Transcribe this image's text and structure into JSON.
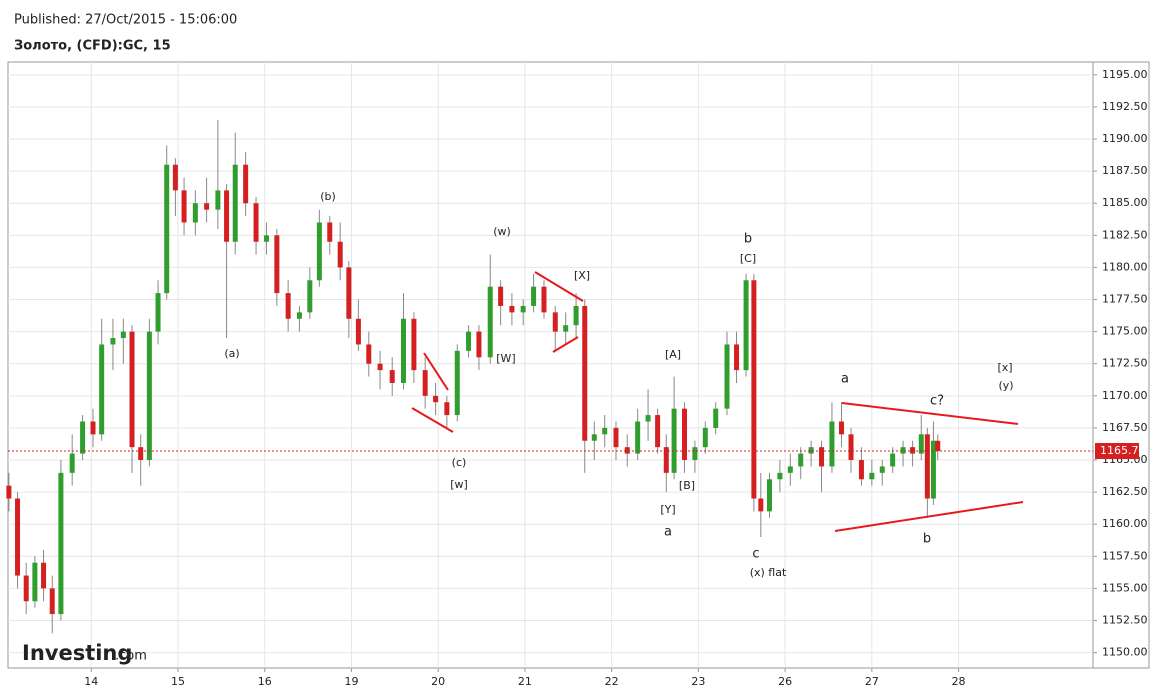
{
  "header": {
    "published": "Published: 27/Oct/2015 - 15:06:00",
    "instrument": "Золото, (CFD):GC, 15"
  },
  "logo": {
    "brand": "Investing",
    "suffix": ".com"
  },
  "chart_data": {
    "type": "candlestick",
    "up_color": "#2f9e2f",
    "down_color": "#d42020",
    "wick_color": "#888888",
    "last_price": 1165.7,
    "last_price_label": "1165.70",
    "last_price_color": "#d42020",
    "xlim": [
      0.04,
      12.55
    ],
    "xticks": [
      {
        "value": 1,
        "label": "14"
      },
      {
        "value": 2,
        "label": "15"
      },
      {
        "value": 3,
        "label": "16"
      },
      {
        "value": 4,
        "label": "19"
      },
      {
        "value": 5,
        "label": "20"
      },
      {
        "value": 6,
        "label": "21"
      },
      {
        "value": 7,
        "label": "22"
      },
      {
        "value": 8,
        "label": "23"
      },
      {
        "value": 9,
        "label": "26"
      },
      {
        "value": 10,
        "label": "27"
      },
      {
        "value": 11,
        "label": "28"
      }
    ],
    "ylim": [
      1148.8,
      1196.0
    ],
    "yticks": [
      {
        "value": 1150,
        "label": "1150.00"
      },
      {
        "value": 1152.5,
        "label": "1152.50"
      },
      {
        "value": 1155,
        "label": "1155.00"
      },
      {
        "value": 1157.5,
        "label": "1157.50"
      },
      {
        "value": 1160,
        "label": "1160.00"
      },
      {
        "value": 1162.5,
        "label": "1162.50"
      },
      {
        "value": 1165,
        "label": "1165.00"
      },
      {
        "value": 1167.5,
        "label": "1167.50"
      },
      {
        "value": 1170,
        "label": "1170.00"
      },
      {
        "value": 1172.5,
        "label": "1172.50"
      },
      {
        "value": 1175,
        "label": "1175.00"
      },
      {
        "value": 1177.5,
        "label": "1177.50"
      },
      {
        "value": 1180,
        "label": "1180.00"
      },
      {
        "value": 1182.5,
        "label": "1182.50"
      },
      {
        "value": 1185,
        "label": "1185.00"
      },
      {
        "value": 1187.5,
        "label": "1187.50"
      },
      {
        "value": 1190,
        "label": "1190.00"
      },
      {
        "value": 1192.5,
        "label": "1192.50"
      },
      {
        "value": 1195,
        "label": "1195.00"
      }
    ],
    "grid": true,
    "annotations": [
      "(a)",
      "(b)",
      "(w)",
      "[X]",
      "[W]",
      "(c)",
      "[w]",
      "[A]",
      "[B]",
      "[Y]",
      "a",
      "b",
      "[C]",
      "c",
      "(x) flat",
      "a",
      "c?",
      "b",
      "[x]",
      "(y)"
    ],
    "x": [
      0.05,
      0.15,
      0.25,
      0.35,
      0.45,
      0.55,
      0.65,
      0.78,
      0.9,
      1.02,
      1.12,
      1.25,
      1.37,
      1.47,
      1.57,
      1.67,
      1.77,
      1.87,
      1.97,
      2.07,
      2.2,
      2.33,
      2.46,
      2.56,
      2.66,
      2.78,
      2.9,
      3.02,
      3.14,
      3.27,
      3.4,
      3.52,
      3.63,
      3.75,
      3.87,
      3.97,
      4.08,
      4.2,
      4.33,
      4.47,
      4.6,
      4.72,
      4.85,
      4.97,
      5.1,
      5.22,
      5.35,
      5.47,
      5.6,
      5.72,
      5.85,
      5.98,
      6.1,
      6.22,
      6.35,
      6.47,
      6.59,
      6.69,
      6.8,
      6.92,
      7.05,
      7.18,
      7.3,
      7.42,
      7.53,
      7.63,
      7.72,
      7.84,
      7.96,
      8.08,
      8.2,
      8.33,
      8.44,
      8.55,
      8.64,
      8.72,
      8.82,
      8.94,
      9.06,
      9.18,
      9.3,
      9.42,
      9.54,
      9.65,
      9.76,
      9.88,
      10.0,
      10.12,
      10.24,
      10.36,
      10.47,
      10.57,
      10.64,
      10.71,
      10.76
    ],
    "open": [
      1163,
      1162,
      1156,
      1154,
      1157,
      1155,
      1153,
      1164,
      1165.5,
      1168,
      1167,
      1174,
      1174.5,
      1175,
      1166,
      1165,
      1175,
      1178,
      1188,
      1186,
      1183.5,
      1185,
      1184.5,
      1186,
      1182,
      1188,
      1185,
      1182,
      1182.5,
      1178,
      1176,
      1176.5,
      1179,
      1183.5,
      1182,
      1180,
      1176,
      1174,
      1172.5,
      1172,
      1171,
      1176,
      1172,
      1170,
      1169.5,
      1168.5,
      1173.5,
      1175,
      1173,
      1178.5,
      1177,
      1176.5,
      1177,
      1178.5,
      1176.5,
      1175,
      1175.5,
      1177,
      1166.5,
      1167,
      1167.5,
      1166,
      1165.5,
      1168,
      1168.5,
      1166,
      1164,
      1169,
      1165,
      1166,
      1167.5,
      1169,
      1174,
      1172,
      1179,
      1162,
      1161,
      1163.5,
      1164,
      1164.5,
      1165.5,
      1166,
      1164.5,
      1168,
      1167,
      1165,
      1163.5,
      1164,
      1164.5,
      1165.5,
      1166,
      1165.5,
      1167,
      1162,
      1166.5
    ],
    "high": [
      1164,
      1162.5,
      1157,
      1157.5,
      1158,
      1156,
      1165,
      1167,
      1168.5,
      1169,
      1176,
      1176,
      1176,
      1175.5,
      1167,
      1176,
      1179,
      1189.5,
      1188.5,
      1187,
      1186,
      1187,
      1191.5,
      1186.5,
      1190.5,
      1189,
      1185.5,
      1183.5,
      1183,
      1179,
      1177,
      1180,
      1184.5,
      1184,
      1183.5,
      1180.5,
      1177.5,
      1175,
      1173.5,
      1173,
      1178,
      1176.5,
      1173,
      1171,
      1170,
      1174,
      1175.5,
      1175.5,
      1181,
      1179,
      1178,
      1177.5,
      1179.5,
      1179,
      1177,
      1176.5,
      1178,
      1177.5,
      1168,
      1168.5,
      1168,
      1167,
      1169,
      1170.5,
      1169,
      1167,
      1171.5,
      1169.5,
      1166.5,
      1168,
      1169.5,
      1175,
      1175,
      1179.5,
      1179.5,
      1164,
      1164,
      1165,
      1165.5,
      1166,
      1166.5,
      1166.5,
      1169.5,
      1169.5,
      1167.5,
      1166,
      1165,
      1165,
      1166,
      1166.5,
      1166.5,
      1168.5,
      1167.5,
      1168,
      1167
    ],
    "low": [
      1161,
      1155,
      1153,
      1153.5,
      1154,
      1151.5,
      1152.5,
      1163,
      1165,
      1166,
      1166.5,
      1172,
      1172.5,
      1164,
      1163,
      1164.5,
      1174,
      1177.5,
      1184,
      1182.5,
      1182.5,
      1183.5,
      1183,
      1174.5,
      1181,
      1184,
      1181,
      1181,
      1177,
      1175,
      1175,
      1176,
      1178.5,
      1181,
      1179,
      1174.5,
      1173.5,
      1171.5,
      1170.5,
      1170,
      1170.5,
      1171,
      1169,
      1168.5,
      1167.5,
      1168,
      1173,
      1172,
      1172.5,
      1175.5,
      1175.5,
      1175.5,
      1176.5,
      1176,
      1173.5,
      1174,
      1174.5,
      1164,
      1165,
      1166,
      1165,
      1164.5,
      1165,
      1166.5,
      1165.5,
      1162.5,
      1163.5,
      1164,
      1164,
      1165.5,
      1167,
      1168.5,
      1171,
      1171.5,
      1161,
      1159,
      1160.5,
      1162.5,
      1163,
      1163.5,
      1164.5,
      1162.5,
      1164,
      1166,
      1164,
      1163,
      1163,
      1163,
      1164,
      1164.5,
      1164.5,
      1165,
      1160.5,
      1161.5,
      1165
    ],
    "close": [
      1162,
      1156,
      1154,
      1157,
      1155,
      1153,
      1164,
      1165.5,
      1168,
      1167,
      1174,
      1174.5,
      1175,
      1166,
      1165,
      1175,
      1178,
      1188,
      1186,
      1183.5,
      1185,
      1184.5,
      1186,
      1182,
      1188,
      1185,
      1182,
      1182.5,
      1178,
      1176,
      1176.5,
      1179,
      1183.5,
      1182,
      1180,
      1176,
      1174,
      1172.5,
      1172,
      1171,
      1176,
      1172,
      1170,
      1169.5,
      1168.5,
      1173.5,
      1175,
      1173,
      1178.5,
      1177,
      1176.5,
      1177,
      1178.5,
      1176.5,
      1175,
      1175.5,
      1177,
      1166.5,
      1167,
      1167.5,
      1166,
      1165.5,
      1168,
      1168.5,
      1166,
      1164,
      1169,
      1165,
      1166,
      1167.5,
      1169,
      1174,
      1172,
      1179,
      1162,
      1161,
      1163.5,
      1164,
      1164.5,
      1165.5,
      1166,
      1164.5,
      1168,
      1167,
      1165,
      1163.5,
      1164,
      1164.5,
      1165.5,
      1166,
      1165.5,
      1167,
      1162,
      1166.5,
      1165.7
    ]
  }
}
